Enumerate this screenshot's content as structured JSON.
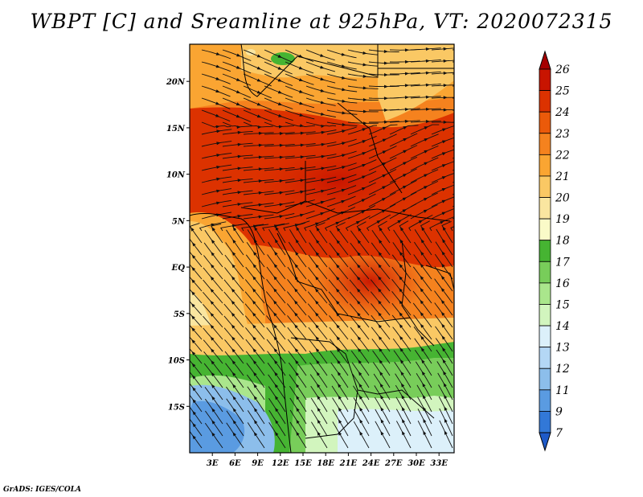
{
  "title": "WBPT [C] and Sreamline at 925hPa, VT: 2020072315",
  "credit": "GrADS: IGES/COLA",
  "map": {
    "lon_range": [
      0,
      35
    ],
    "lat_range": [
      -20,
      24
    ],
    "lon_ticks": [
      {
        "lon": 3,
        "label": "3E"
      },
      {
        "lon": 6,
        "label": "6E"
      },
      {
        "lon": 9,
        "label": "9E"
      },
      {
        "lon": 12,
        "label": "12E"
      },
      {
        "lon": 15,
        "label": "15E"
      },
      {
        "lon": 18,
        "label": "18E"
      },
      {
        "lon": 21,
        "label": "21E"
      },
      {
        "lon": 24,
        "label": "24E"
      },
      {
        "lon": 27,
        "label": "27E"
      },
      {
        "lon": 30,
        "label": "30E"
      },
      {
        "lon": 33,
        "label": "33E"
      }
    ],
    "lat_ticks": [
      {
        "lat": 20,
        "label": "20N"
      },
      {
        "lat": 15,
        "label": "15N"
      },
      {
        "lat": 10,
        "label": "10N"
      },
      {
        "lat": 5,
        "label": "5N"
      },
      {
        "lat": 0,
        "label": "EQ"
      },
      {
        "lat": -5,
        "label": "5S"
      },
      {
        "lat": -10,
        "label": "10S"
      },
      {
        "lat": -15,
        "label": "15S"
      }
    ],
    "field": "wet-bulb potential temperature",
    "overlay": "streamlines"
  },
  "colorbar": {
    "levels": [
      "26",
      "25",
      "24",
      "23",
      "22",
      "21",
      "20",
      "19",
      "18",
      "17",
      "16",
      "15",
      "14",
      "13",
      "12",
      "11",
      "9",
      "7"
    ],
    "colors": [
      "#a50000",
      "#c81400",
      "#dc3200",
      "#eb5a0a",
      "#f5821e",
      "#faa532",
      "#fac864",
      "#fae6a0",
      "#fafac8",
      "#46b432",
      "#78cd5a",
      "#aae68c",
      "#d2f5be",
      "#dcf0fa",
      "#b4d7f5",
      "#8cbeeb",
      "#5a9be1",
      "#3278d7",
      "#1e5ac8"
    ]
  }
}
